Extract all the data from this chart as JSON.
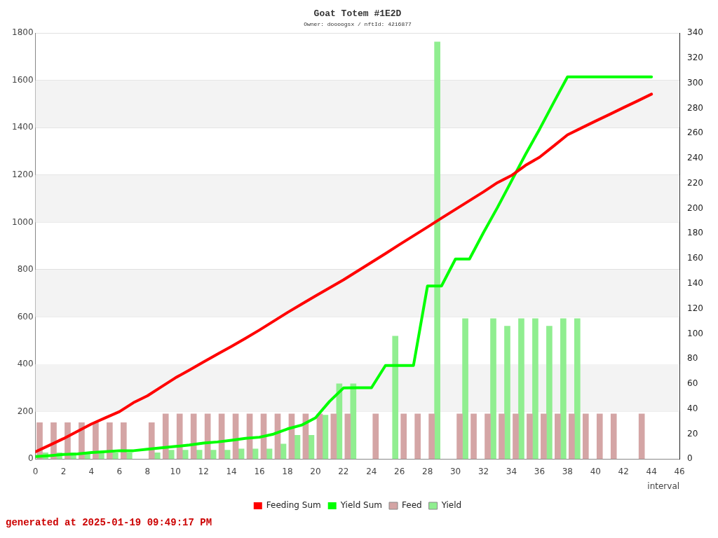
{
  "chart_data": {
    "type": "line",
    "title": "Goat Totem #1E2D",
    "subtitle": "Owner: doooogsx / nftId: 4216877",
    "xlabel": "interval",
    "annotations": [
      "generated at 2025-01-19 09:49:17 PM"
    ],
    "xlim": [
      0,
      46
    ],
    "xticks": [
      0,
      2,
      4,
      6,
      8,
      10,
      12,
      14,
      16,
      18,
      20,
      22,
      24,
      26,
      28,
      30,
      32,
      34,
      36,
      38,
      40,
      42,
      44,
      46
    ],
    "ylim": [
      0,
      1800
    ],
    "yticks": [
      0,
      200,
      400,
      600,
      800,
      1000,
      1200,
      1400,
      1600,
      1800
    ],
    "y2lim": [
      0,
      340
    ],
    "y2ticks": [
      0,
      20,
      40,
      60,
      80,
      100,
      120,
      140,
      160,
      180,
      200,
      220,
      240,
      260,
      280,
      300,
      320,
      340
    ],
    "grid": "y",
    "legend": "bottom",
    "marker": "none",
    "line_style": "solid",
    "series": [
      {
        "name": "Feeding Sum",
        "color": "#ff0000",
        "x": [
          0,
          1,
          2,
          3,
          4,
          5,
          6,
          7,
          8,
          9,
          10,
          11,
          12,
          13,
          14,
          15,
          16,
          17,
          18,
          19,
          20,
          21,
          22,
          23,
          24,
          25,
          26,
          27,
          28,
          29,
          30,
          31,
          32,
          33,
          34,
          35,
          36,
          37,
          38,
          39,
          40,
          41,
          42,
          43,
          44
        ],
        "values": [
          30,
          58,
          86,
          117,
          148,
          174,
          200,
          238,
          267,
          305,
          343,
          376,
          410,
          443,
          476,
          510,
          545,
          582,
          619,
          654,
          689,
          723,
          757,
          794,
          831,
          868,
          906,
          943,
          980,
          1018,
          1055,
          1092,
          1129,
          1168,
          1198,
          1241,
          1275,
          1322,
          1370,
          1399,
          1428,
          1456,
          1485,
          1513,
          1542
        ]
      },
      {
        "name": "Yield Sum",
        "color": "#00ff00",
        "x": [
          0,
          1,
          2,
          3,
          4,
          5,
          6,
          7,
          8,
          9,
          10,
          11,
          12,
          13,
          14,
          15,
          16,
          17,
          18,
          19,
          20,
          21,
          22,
          23,
          24,
          25,
          26,
          27,
          28,
          29,
          30,
          31,
          32,
          33,
          34,
          35,
          36,
          37,
          38,
          39,
          40,
          41,
          42,
          43,
          44
        ],
        "values": [
          10,
          14,
          19,
          21,
          27,
          31,
          35,
          35,
          41,
          47,
          53,
          59,
          67,
          72,
          79,
          87,
          92,
          105,
          127,
          143,
          174,
          243,
          300,
          301,
          301,
          395,
          395,
          395,
          731,
          731,
          845,
          845,
          957,
          1063,
          1175,
          1287,
          1393,
          1505,
          1615,
          1615,
          1615,
          1615,
          1615,
          1615,
          1615
        ]
      },
      {
        "name": "Feed",
        "type": "bar",
        "axis": "y2",
        "color": "#d4a5a5",
        "x": [
          0.5,
          1.5,
          2.5,
          3.5,
          4.5,
          5.5,
          6.5,
          7.5,
          8.5,
          9.5,
          10.5,
          11.5,
          12.5,
          13.5,
          14.5,
          15.5,
          16.5,
          17.5,
          18.5,
          19.5,
          20.5,
          21.5,
          22.5,
          23.5,
          24.5,
          25.5,
          26.5,
          27.5,
          28.5,
          29.5,
          30.5,
          31.5,
          32.5,
          33.5,
          34.5,
          35.5,
          36.5,
          37.5,
          38.5,
          39.5,
          40.5,
          41.5,
          42.5,
          43.5
        ],
        "values": [
          29,
          29,
          29,
          29,
          29,
          29,
          29,
          null,
          29,
          36,
          36,
          36,
          36,
          36,
          36,
          36,
          36,
          36,
          36,
          36,
          36,
          36,
          36,
          null,
          36,
          null,
          36,
          36,
          36,
          null,
          36,
          36,
          36,
          36,
          36,
          36,
          36,
          36,
          36,
          36,
          36,
          36,
          null,
          36
        ]
      },
      {
        "name": "Yield",
        "type": "bar",
        "axis": "y2",
        "color": "#90ee90",
        "x": [
          0.5,
          1.5,
          2.5,
          3.5,
          4.5,
          5.5,
          6.5,
          7.5,
          8.5,
          9.5,
          10.5,
          11.5,
          12.5,
          13.5,
          14.5,
          15.5,
          16.5,
          17.5,
          18.5,
          19.5,
          20.5,
          21.5,
          22.5,
          23.5,
          24.5,
          25.5,
          26.5,
          27.5,
          28.5,
          29.5,
          30.5,
          31.5,
          32.5,
          33.5,
          34.5,
          35.5,
          36.5,
          37.5,
          38.5
        ],
        "values": [
          5,
          5,
          5,
          5,
          5,
          5,
          5,
          null,
          5,
          7,
          7,
          7,
          7,
          7,
          8,
          8,
          8,
          12,
          19,
          19,
          35,
          60,
          60,
          null,
          null,
          98,
          null,
          null,
          333,
          null,
          112,
          null,
          112,
          106,
          112,
          112,
          106,
          112,
          112
        ]
      }
    ]
  }
}
